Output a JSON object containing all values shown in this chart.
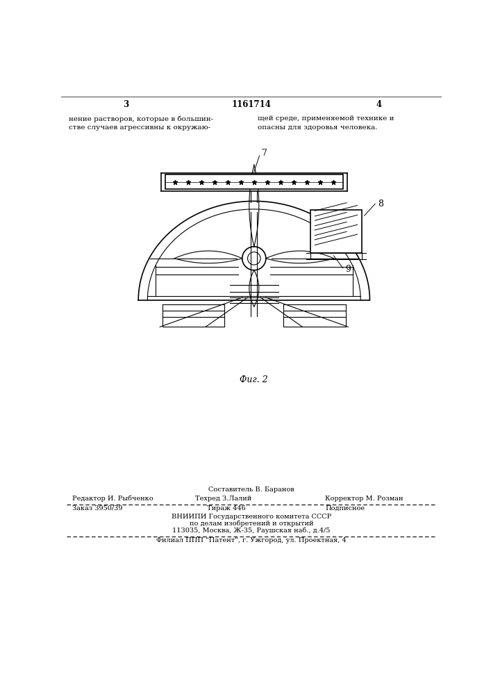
{
  "page_width": 7.07,
  "page_height": 10.0,
  "bg_color": "#ffffff",
  "header_left_text": "3",
  "header_center_text": "1161714",
  "header_right_text": "4",
  "text_col1_line1": "нение растворов, которые в большин-",
  "text_col1_line2": "стве случаев агрессивны к окружаю-",
  "text_col2_line1": "щей среде, применяемой технике и",
  "text_col2_line2": "опасны для здоровья человека.",
  "fig_caption": "Фиг. 2",
  "footer_texts": {
    "sostavitel": "Составитель В. Баранов",
    "redaktor": "Редактор И. Рыбченко",
    "tehred": "Техред З.Лалий",
    "korrektor": "Корректор М. Розман",
    "zakaz": "Заказ 3950/39",
    "tirazh": "Тираж 446",
    "podpisnoe": "Подписное",
    "vniishi_line1": "ВНИИПИ Государственного комитета СССР",
    "vniishi_line2": "по делам изобретений и открытий",
    "vniishi_line3": "113035, Москва, Ж-35, Раушская наб., д.4/5",
    "filial": "Филиал ППП \"Патент\", г. Ужгород, ул. Проектная, 4"
  }
}
